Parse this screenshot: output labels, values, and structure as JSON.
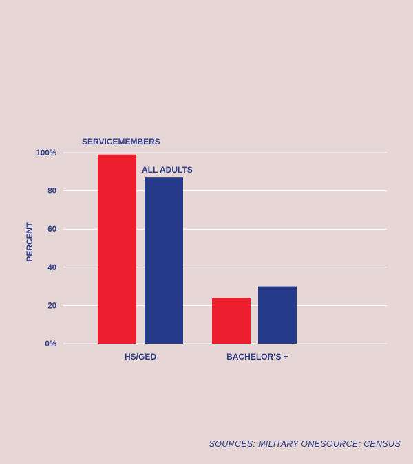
{
  "chart_data": {
    "type": "bar",
    "categories": [
      "HS/GED",
      "BACHELOR’S +"
    ],
    "series": [
      {
        "name": "SERVICEMEMBERS",
        "values": [
          99,
          24
        ],
        "color": "#ed1f2e"
      },
      {
        "name": "ALL ADULTS",
        "values": [
          87,
          30
        ],
        "color": "#253b8a"
      }
    ],
    "ylabel": "PERCENT",
    "xlabel": "",
    "ylim": [
      0,
      100
    ],
    "yticks": [
      {
        "value": 0,
        "label": "0%"
      },
      {
        "value": 20,
        "label": "20"
      },
      {
        "value": 40,
        "label": "40"
      },
      {
        "value": 60,
        "label": "60"
      },
      {
        "value": 80,
        "label": "80"
      },
      {
        "value": 100,
        "label": "100%"
      }
    ],
    "grid": true,
    "legend": "direct labels above bars"
  },
  "source": "SOURCES: MILITARY ONESOURCE; CENSUS",
  "colors": {
    "background": "#e6d6d6",
    "text": "#2d3e8c",
    "grid": "#ffffff"
  }
}
